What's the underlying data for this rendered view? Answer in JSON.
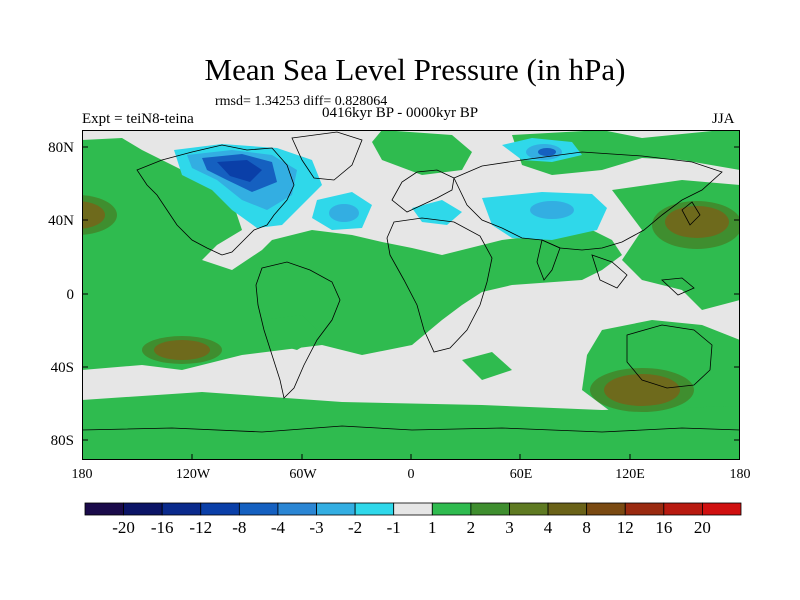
{
  "figure": {
    "title": "Mean Sea Level Pressure (in hPa)",
    "stats": "rmsd= 1.34253 diff= 0.828064",
    "period": "0416kyr BP - 0000kyr BP",
    "experiment": "Expt = teiN8-teina",
    "season": "JJA"
  },
  "axes": {
    "y_ticks": [
      "80N",
      "40N",
      "0",
      "40S",
      "80S"
    ],
    "x_ticks": [
      "180",
      "120W",
      "60W",
      "0",
      "60E",
      "120E",
      "180"
    ]
  },
  "colorbar": {
    "labels": [
      "-20",
      "-16",
      "-12",
      "-8",
      "-4",
      "-3",
      "-2",
      "-1",
      "1",
      "2",
      "3",
      "4",
      "8",
      "12",
      "16",
      "20"
    ],
    "colors": [
      "#1a0a4a",
      "#0b1466",
      "#0a2a8c",
      "#0a3fa8",
      "#1560c0",
      "#2b86d4",
      "#33aee2",
      "#2fd8ea",
      "#e6e6e6",
      "#2fbb4f",
      "#3f8e2f",
      "#5f7a22",
      "#6a6218",
      "#7a4a12",
      "#9a2a10",
      "#b81a10",
      "#d01010"
    ]
  },
  "colors": {
    "neutral": "#e6e6e6",
    "positive_light": "#2fbb4f",
    "positive_mid": "#3f8e2f",
    "positive_strong": "#6e6a1c",
    "negative_light": "#2fd8ea",
    "negative_mid": "#33aee2",
    "negative_strong": "#1560c0",
    "negative_deep": "#0a3fa8"
  }
}
